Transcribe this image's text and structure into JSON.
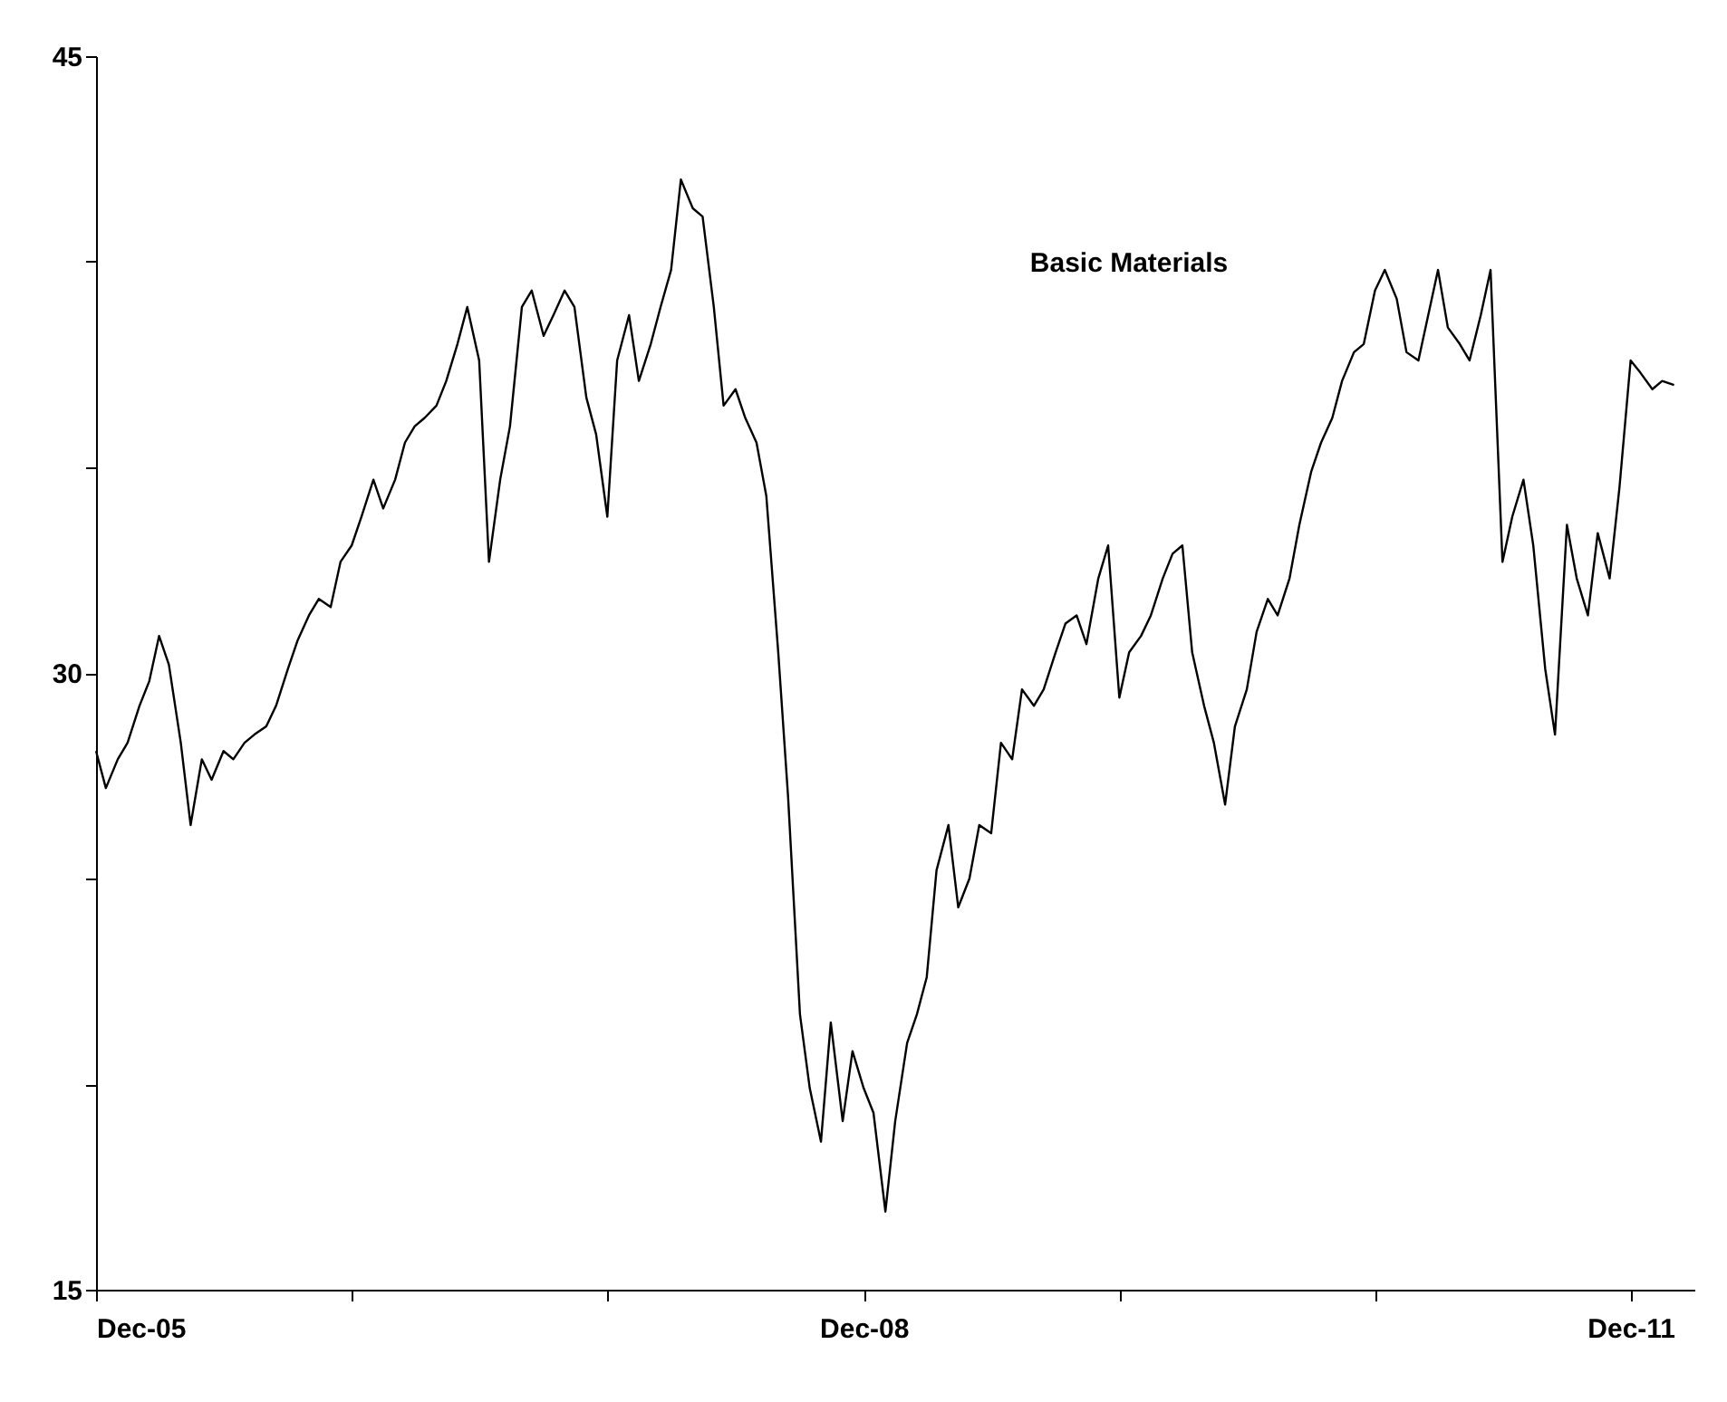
{
  "chart_data": {
    "type": "line",
    "annotations": [
      "Basic Materials"
    ],
    "x": [
      "2005-12-01",
      "2005-12-15",
      "2006-01-01",
      "2006-01-15",
      "2006-02-01",
      "2006-02-15",
      "2006-03-01",
      "2006-03-15",
      "2006-04-01",
      "2006-04-15",
      "2006-05-01",
      "2006-05-15",
      "2006-06-01",
      "2006-06-15",
      "2006-07-01",
      "2006-07-15",
      "2006-08-01",
      "2006-08-15",
      "2006-09-01",
      "2006-09-15",
      "2006-10-01",
      "2006-10-15",
      "2006-11-01",
      "2006-11-15",
      "2006-12-01",
      "2006-12-15",
      "2007-01-01",
      "2007-01-15",
      "2007-02-01",
      "2007-02-15",
      "2007-03-01",
      "2007-03-15",
      "2007-04-01",
      "2007-04-15",
      "2007-05-01",
      "2007-05-15",
      "2007-06-01",
      "2007-06-15",
      "2007-07-01",
      "2007-07-15",
      "2007-08-01",
      "2007-08-15",
      "2007-09-01",
      "2007-09-15",
      "2007-10-01",
      "2007-10-15",
      "2007-11-01",
      "2007-11-15",
      "2007-12-01",
      "2007-12-15",
      "2008-01-01",
      "2008-01-15",
      "2008-02-01",
      "2008-02-15",
      "2008-03-01",
      "2008-03-15",
      "2008-04-01",
      "2008-04-15",
      "2008-05-01",
      "2008-05-15",
      "2008-06-01",
      "2008-06-15",
      "2008-07-01",
      "2008-07-15",
      "2008-08-01",
      "2008-08-15",
      "2008-09-01",
      "2008-09-15",
      "2008-10-01",
      "2008-10-15",
      "2008-11-01",
      "2008-11-15",
      "2008-12-01",
      "2008-12-15",
      "2009-01-01",
      "2009-01-15",
      "2009-02-01",
      "2009-02-15",
      "2009-03-01",
      "2009-03-15",
      "2009-04-01",
      "2009-04-15",
      "2009-05-01",
      "2009-05-15",
      "2009-06-01",
      "2009-06-15",
      "2009-07-01",
      "2009-07-15",
      "2009-08-01",
      "2009-08-15",
      "2009-09-01",
      "2009-09-15",
      "2009-10-01",
      "2009-10-15",
      "2009-11-01",
      "2009-11-15",
      "2009-12-01",
      "2009-12-15",
      "2010-01-01",
      "2010-01-15",
      "2010-02-01",
      "2010-02-15",
      "2010-03-01",
      "2010-03-15",
      "2010-04-01",
      "2010-04-15",
      "2010-05-01",
      "2010-05-15",
      "2010-06-01",
      "2010-06-15",
      "2010-07-01",
      "2010-07-15",
      "2010-08-01",
      "2010-08-15",
      "2010-09-01",
      "2010-09-15",
      "2010-10-01",
      "2010-10-15",
      "2010-11-01",
      "2010-11-15",
      "2010-12-01",
      "2010-12-15",
      "2011-01-01",
      "2011-01-15",
      "2011-02-01",
      "2011-02-15",
      "2011-03-01",
      "2011-03-15",
      "2011-04-01",
      "2011-04-15",
      "2011-05-01",
      "2011-05-15",
      "2011-06-01",
      "2011-06-15",
      "2011-07-01",
      "2011-07-15",
      "2011-08-01",
      "2011-08-15",
      "2011-09-01",
      "2011-09-15",
      "2011-10-01",
      "2011-10-15",
      "2011-11-01",
      "2011-11-15",
      "2011-12-01",
      "2011-12-15",
      "2012-01-01",
      "2012-01-15",
      "2012-02-01"
    ],
    "series": [
      {
        "color": "#000000",
        "values": [
          28.1,
          27.2,
          27.9,
          28.3,
          29.2,
          29.8,
          30.9,
          30.2,
          28.3,
          26.3,
          27.9,
          27.4,
          28.1,
          27.9,
          28.3,
          28.5,
          28.7,
          29.2,
          30.1,
          30.8,
          31.4,
          31.8,
          31.6,
          32.7,
          33.1,
          33.8,
          34.7,
          34.0,
          34.7,
          35.6,
          36.0,
          36.2,
          36.5,
          37.1,
          38.0,
          38.9,
          37.6,
          32.7,
          34.7,
          36.0,
          38.9,
          39.3,
          38.2,
          38.7,
          39.3,
          38.9,
          36.7,
          35.8,
          33.8,
          37.6,
          38.7,
          37.1,
          38.0,
          38.9,
          39.8,
          42.0,
          41.3,
          41.1,
          38.9,
          36.5,
          36.9,
          36.2,
          35.6,
          34.3,
          30.5,
          27.0,
          21.7,
          19.9,
          18.6,
          21.5,
          19.1,
          20.8,
          19.9,
          19.3,
          16.9,
          19.1,
          21.0,
          21.7,
          22.6,
          25.2,
          26.3,
          24.3,
          25.0,
          26.3,
          26.1,
          28.3,
          27.9,
          29.6,
          29.2,
          29.6,
          30.5,
          31.2,
          31.4,
          30.7,
          32.3,
          33.1,
          29.4,
          30.5,
          30.9,
          31.4,
          32.3,
          32.9,
          33.1,
          30.5,
          29.2,
          28.3,
          26.8,
          28.7,
          29.6,
          31.0,
          31.8,
          31.4,
          32.3,
          33.6,
          34.9,
          35.6,
          36.2,
          37.1,
          37.8,
          38.0,
          39.3,
          39.8,
          39.1,
          37.8,
          37.6,
          38.7,
          39.8,
          38.4,
          38.0,
          37.6,
          38.7,
          39.8,
          32.7,
          33.8,
          34.7,
          33.1,
          30.1,
          28.5,
          33.6,
          32.3,
          31.4,
          33.4,
          32.3,
          34.5,
          37.6,
          37.3,
          36.9,
          37.1,
          37.0
        ]
      }
    ],
    "xlim": [
      "2005-12-01",
      "2012-03-01"
    ],
    "xticks": [
      {
        "value": "2005-12-01",
        "label": "Dec-05"
      },
      {
        "value": "2006-12-01",
        "label": null
      },
      {
        "value": "2007-12-01",
        "label": null
      },
      {
        "value": "2008-12-01",
        "label": "Dec-08"
      },
      {
        "value": "2009-12-01",
        "label": null
      },
      {
        "value": "2010-12-01",
        "label": null
      },
      {
        "value": "2011-12-01",
        "label": "Dec-11"
      }
    ],
    "ylim": [
      15,
      45
    ],
    "yticks": [
      15,
      {
        "value": 20,
        "label": null
      },
      {
        "value": 25,
        "label": null
      },
      30,
      {
        "value": 35,
        "label": null
      },
      {
        "value": 40,
        "label": null
      },
      45
    ],
    "grid": false,
    "marker": "none",
    "line_style": "solid"
  }
}
